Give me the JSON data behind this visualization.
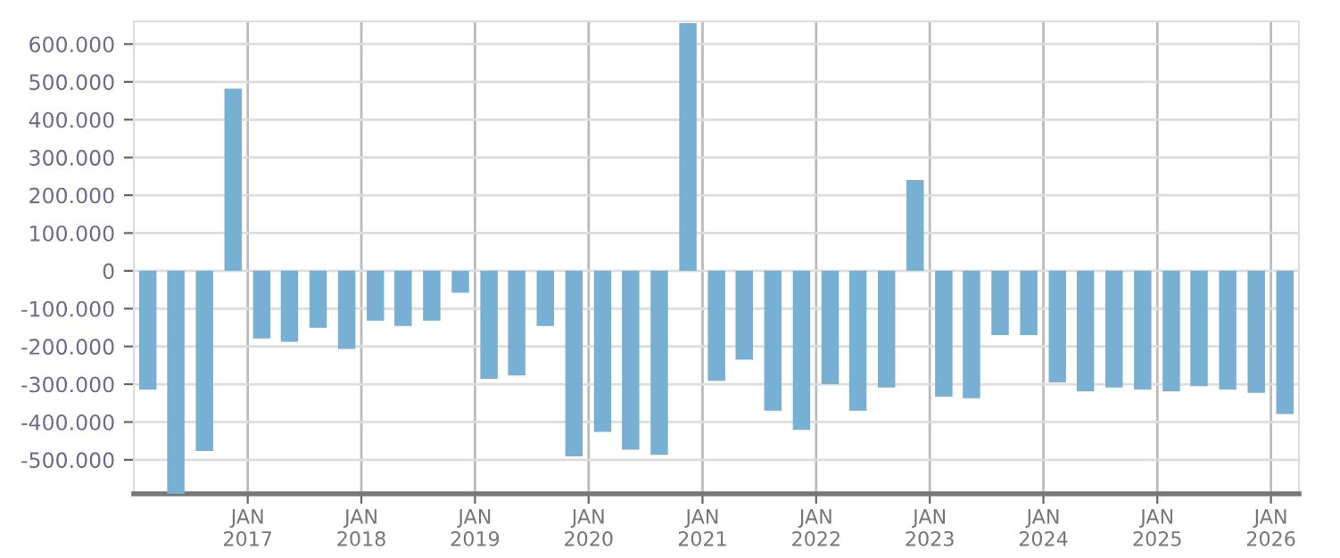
{
  "chart_data": {
    "type": "bar",
    "color": "#78b0d3",
    "grid": true,
    "x": [
      "2016-02-15",
      "2016-05-15",
      "2016-08-15",
      "2016-11-15",
      "2017-02-15",
      "2017-05-15",
      "2017-08-15",
      "2017-11-15",
      "2018-02-15",
      "2018-05-15",
      "2018-08-15",
      "2018-11-15",
      "2019-02-15",
      "2019-05-15",
      "2019-08-15",
      "2019-11-15",
      "2020-02-15",
      "2020-05-15",
      "2020-08-15",
      "2020-11-15",
      "2021-02-15",
      "2021-05-15",
      "2021-08-15",
      "2021-11-15",
      "2022-02-15",
      "2022-05-15",
      "2022-08-15",
      "2022-11-15",
      "2023-02-15",
      "2023-05-15",
      "2023-08-15",
      "2023-11-15",
      "2024-02-15",
      "2024-05-15",
      "2024-08-15",
      "2024-11-15",
      "2025-02-15",
      "2025-05-15",
      "2025-08-15",
      "2025-11-15",
      "2026-02-15"
    ],
    "values": [
      -314000,
      -590000,
      -477000,
      482000,
      -179000,
      -188000,
      -151000,
      -207000,
      -132000,
      -146000,
      -132000,
      -58000,
      -286000,
      -277000,
      -146000,
      -491000,
      -426000,
      -473000,
      -487000,
      655000,
      -291000,
      -235000,
      -370000,
      -421000,
      -300000,
      -370000,
      -309000,
      240000,
      -333000,
      -337000,
      -170000,
      -170000,
      -295000,
      -319000,
      -309000,
      -314000,
      -319000,
      -305000,
      -314000,
      -323000,
      -379000
    ],
    "xlim": [
      "2016-01-01",
      "2026-04-01"
    ],
    "xticks": [
      {
        "value": "2017-01-01",
        "label": "JAN\n2017"
      },
      {
        "value": "2018-01-01",
        "label": "JAN\n2018"
      },
      {
        "value": "2019-01-01",
        "label": "JAN\n2019"
      },
      {
        "value": "2020-01-01",
        "label": "JAN\n2020"
      },
      {
        "value": "2021-01-01",
        "label": "JAN\n2021"
      },
      {
        "value": "2022-01-01",
        "label": "JAN\n2022"
      },
      {
        "value": "2023-01-01",
        "label": "JAN\n2023"
      },
      {
        "value": "2024-01-01",
        "label": "JAN\n2024"
      },
      {
        "value": "2025-01-01",
        "label": "JAN\n2025"
      },
      {
        "value": "2026-01-01",
        "label": "JAN\n2026"
      }
    ],
    "ylim": [
      -590000,
      660000
    ],
    "yticks": [
      {
        "value": -500000,
        "label": "-500.000"
      },
      {
        "value": -400000,
        "label": "-400.000"
      },
      {
        "value": -300000,
        "label": "-300.000"
      },
      {
        "value": -200000,
        "label": "-200.000"
      },
      {
        "value": -100000,
        "label": "-100.000"
      },
      0,
      {
        "value": 100000,
        "label": "100.000"
      },
      {
        "value": 200000,
        "label": "200.000"
      },
      {
        "value": 300000,
        "label": "300.000"
      },
      {
        "value": 400000,
        "label": "400.000"
      },
      {
        "value": 500000,
        "label": "500.000"
      },
      {
        "value": 600000,
        "label": "600.000"
      }
    ]
  }
}
